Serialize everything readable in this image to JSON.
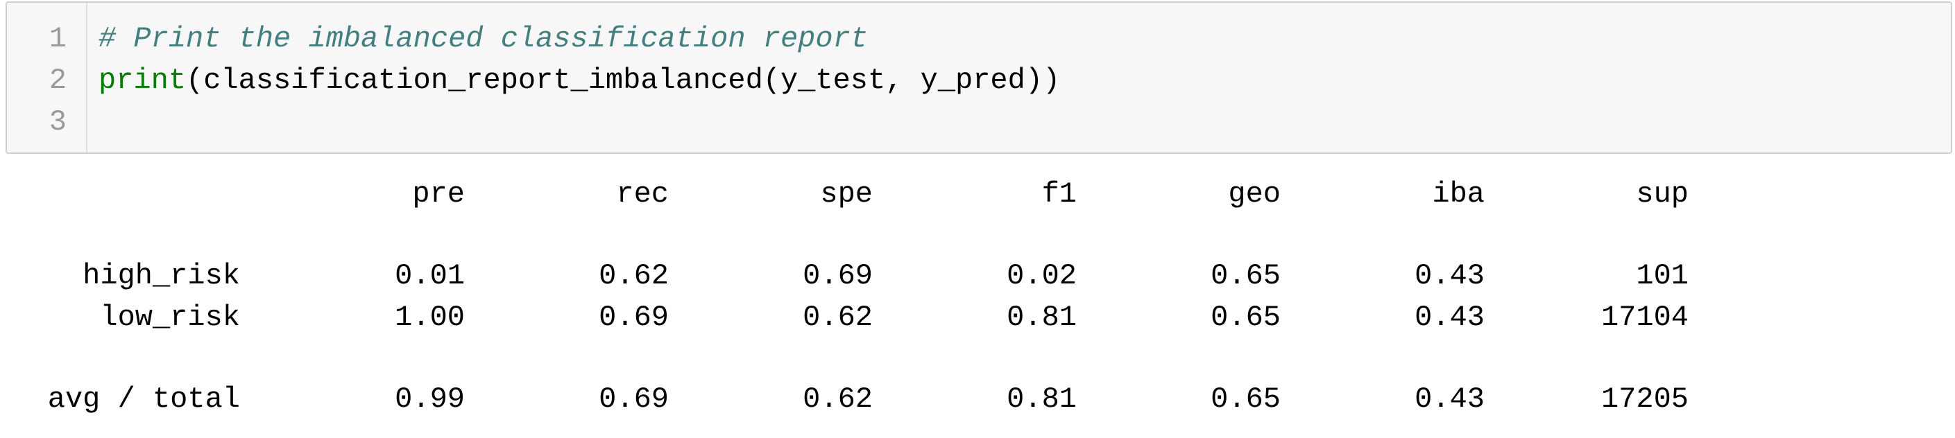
{
  "cell": {
    "line_numbers": [
      "1",
      "2",
      "3"
    ],
    "lines": [
      {
        "comment": "# Print the imbalanced classification report"
      },
      {
        "func": "print",
        "rest": "(classification_report_imbalanced(y_test, y_pred))"
      },
      {
        "text": ""
      }
    ]
  },
  "report": {
    "headers": [
      "pre",
      "rec",
      "spe",
      "f1",
      "geo",
      "iba",
      "sup"
    ],
    "rows": [
      {
        "label": "high_risk",
        "values": [
          "0.01",
          "0.62",
          "0.69",
          "0.02",
          "0.65",
          "0.43",
          "101"
        ]
      },
      {
        "label": "low_risk",
        "values": [
          "1.00",
          "0.69",
          "0.62",
          "0.81",
          "0.65",
          "0.43",
          "17104"
        ]
      }
    ],
    "total": {
      "label": "avg / total",
      "values": [
        "0.99",
        "0.69",
        "0.62",
        "0.81",
        "0.65",
        "0.43",
        "17205"
      ]
    }
  },
  "colors": {
    "comment": "#408080",
    "builtin": "#008000",
    "cell_background": "#f7f7f7"
  }
}
